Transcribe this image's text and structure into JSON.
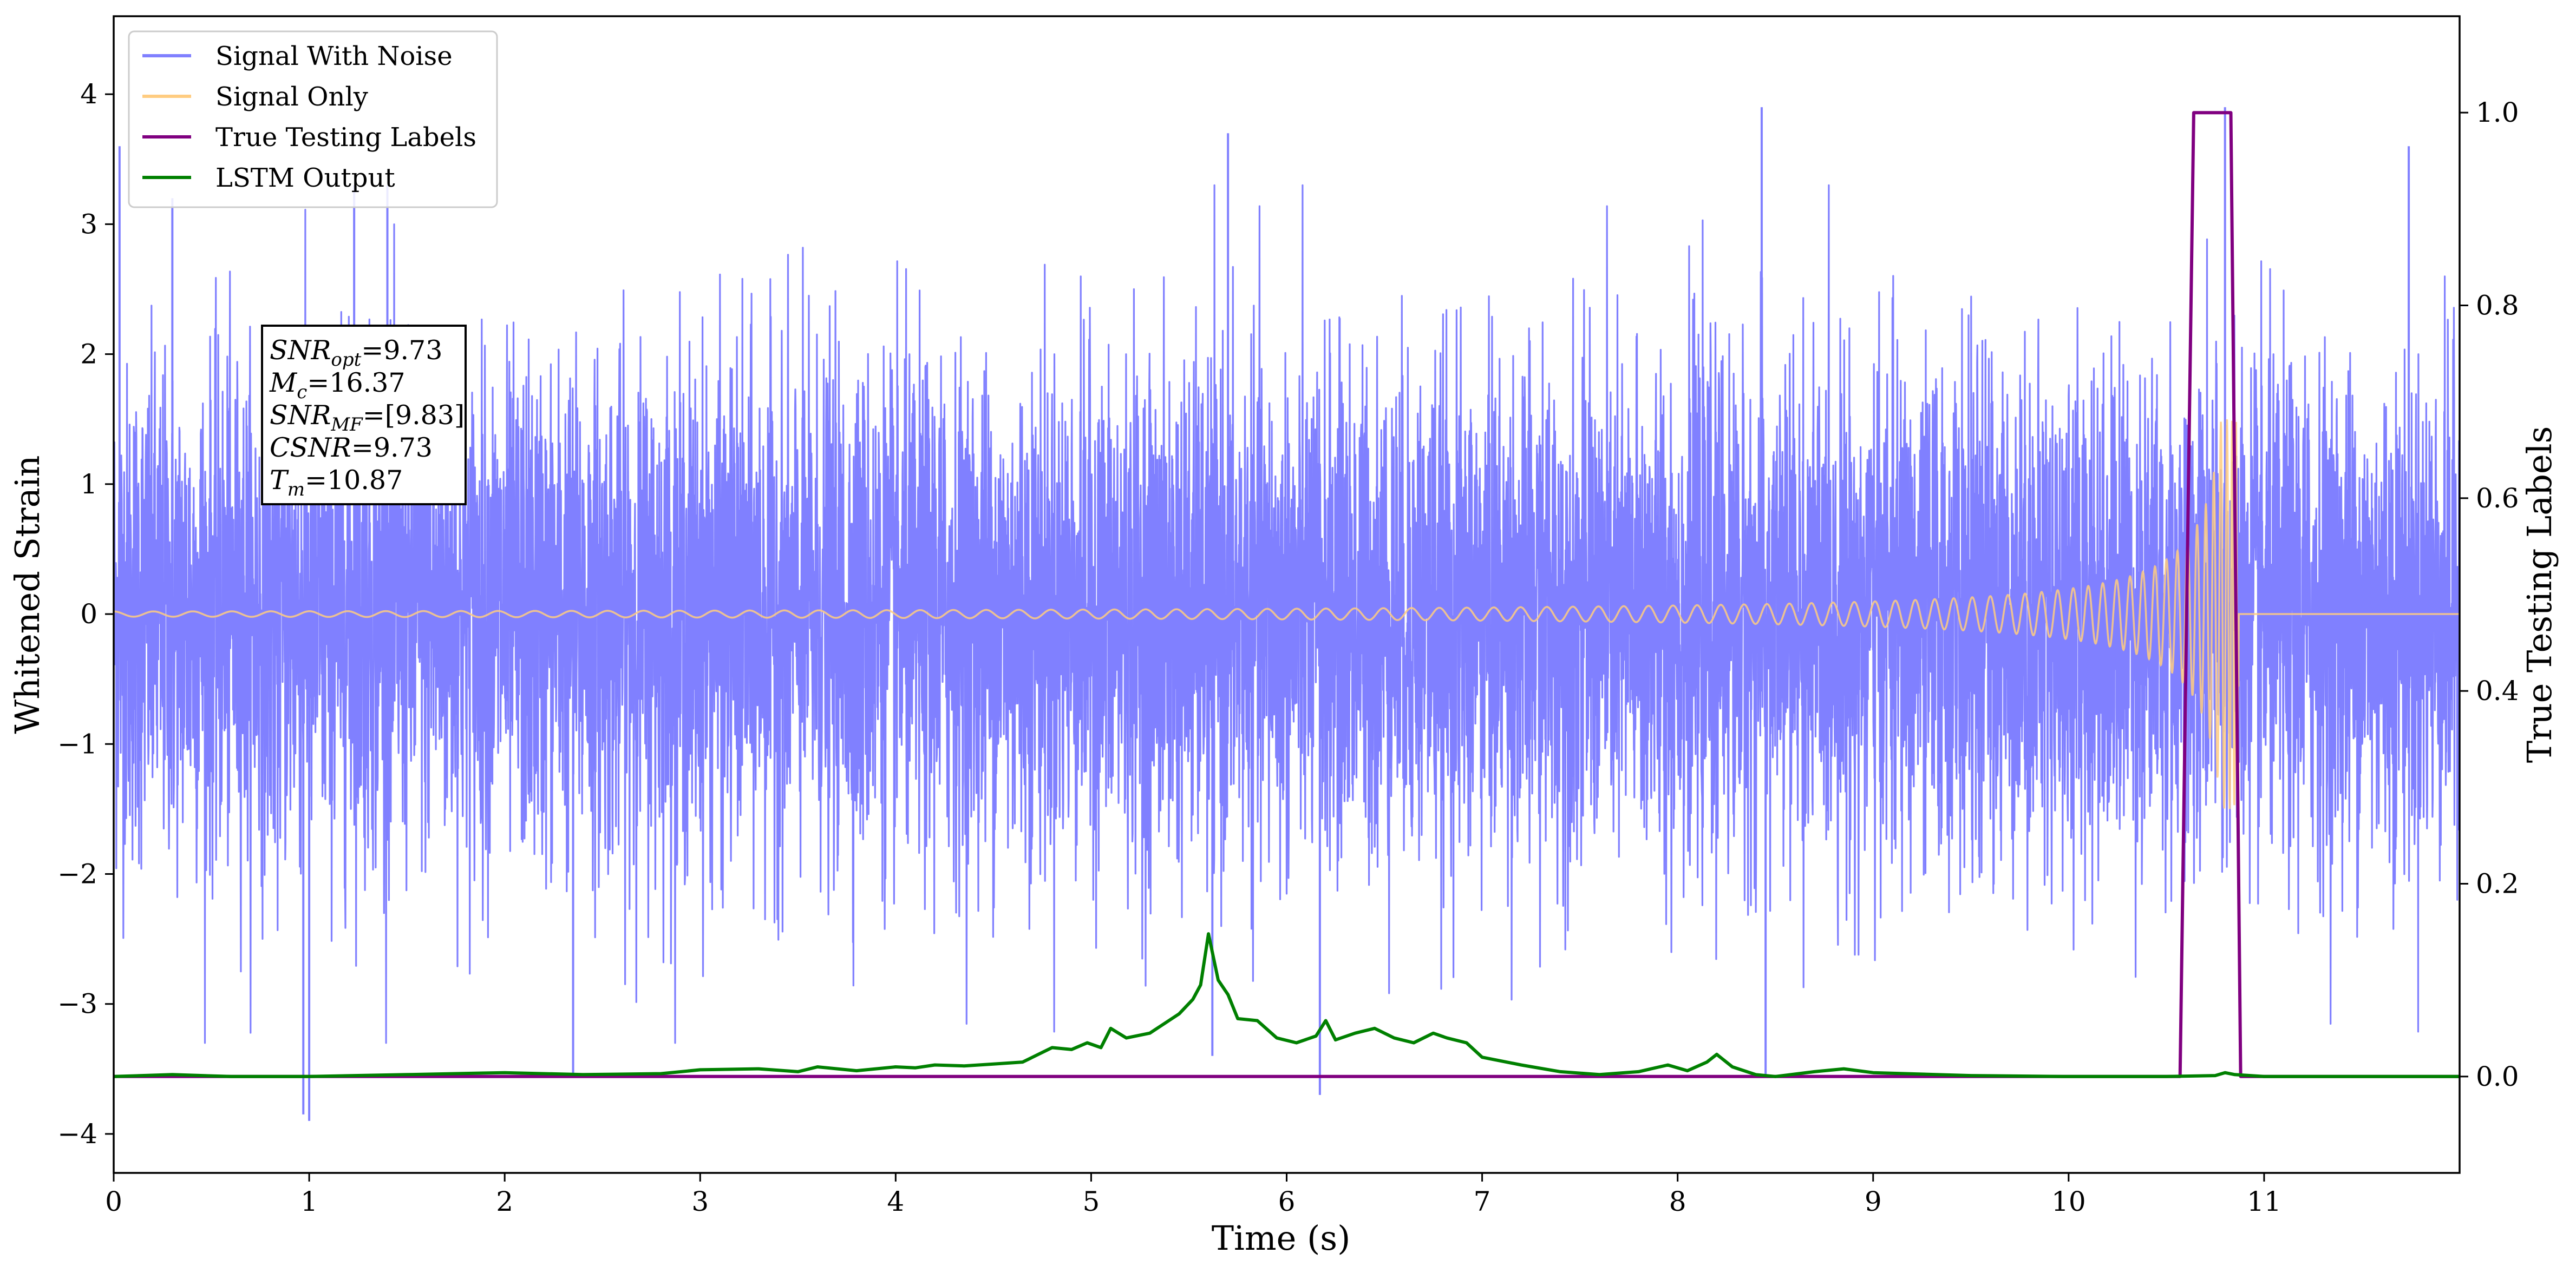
{
  "chart_data": {
    "type": "line",
    "xlabel": "Time (s)",
    "ylabel": "Whitened Strain",
    "y2label": "True Testing Labels",
    "xlim": [
      0,
      12
    ],
    "ylim": [
      -4.3,
      4.6
    ],
    "y2lim": [
      -0.1,
      1.1
    ],
    "xticks": [
      "0",
      "1",
      "2",
      "3",
      "4",
      "5",
      "6",
      "7",
      "8",
      "9",
      "10",
      "11"
    ],
    "yticks": [
      "4",
      "3",
      "2",
      "1",
      "0",
      "−1",
      "−2",
      "−3",
      "−4"
    ],
    "y2ticks": [
      "1.0",
      "0.8",
      "0.6",
      "0.4",
      "0.2",
      "0.0"
    ],
    "grid": false,
    "legend_position": "upper-left",
    "series": [
      {
        "name": "Signal With Noise",
        "axis": "left",
        "color": "#8080ff",
        "noise_sigma": 0.95,
        "notable_points": [
          [
            0.03,
            3.6
          ],
          [
            0.3,
            3.2
          ],
          [
            0.97,
            -3.85
          ],
          [
            1.0,
            -3.9
          ],
          [
            1.23,
            3.3
          ],
          [
            1.4,
            3.3
          ],
          [
            2.35,
            -3.55
          ],
          [
            5.62,
            -3.4
          ],
          [
            5.7,
            3.7
          ],
          [
            6.17,
            -3.7
          ],
          [
            8.43,
            3.9
          ],
          [
            8.45,
            -3.55
          ],
          [
            10.8,
            3.9
          ],
          [
            11.74,
            3.6
          ]
        ]
      },
      {
        "name": "Signal Only",
        "axis": "left",
        "color": "#ffcc80",
        "chirp_start": 0,
        "chirp_end": 10.87,
        "amplitude_start": 0.02,
        "amplitude_end": 1.5
      },
      {
        "name": "True Testing Labels",
        "axis": "right",
        "color": "#800080",
        "x": [
          0,
          10.57,
          10.64,
          10.83,
          10.88,
          12
        ],
        "y": [
          0,
          0,
          1.0,
          1.0,
          0,
          0
        ]
      },
      {
        "name": "LSTM Output",
        "axis": "right",
        "color": "#008000",
        "x": [
          0,
          0.3,
          0.6,
          1.0,
          1.5,
          2.0,
          2.4,
          2.8,
          3.0,
          3.3,
          3.5,
          3.6,
          3.8,
          4.0,
          4.1,
          4.2,
          4.35,
          4.5,
          4.65,
          4.75,
          4.8,
          4.9,
          4.98,
          5.05,
          5.1,
          5.18,
          5.3,
          5.45,
          5.52,
          5.56,
          5.6,
          5.65,
          5.7,
          5.75,
          5.85,
          5.95,
          6.05,
          6.15,
          6.2,
          6.25,
          6.35,
          6.45,
          6.55,
          6.65,
          6.75,
          6.82,
          6.92,
          7.0,
          7.2,
          7.4,
          7.6,
          7.8,
          7.95,
          8.05,
          8.15,
          8.2,
          8.28,
          8.4,
          8.5,
          8.7,
          8.85,
          9.0,
          9.5,
          10.0,
          10.5,
          10.75,
          10.8,
          10.85,
          11.0,
          12.0
        ],
        "y": [
          0.0,
          0.002,
          0.0,
          0.0,
          0.002,
          0.004,
          0.002,
          0.003,
          0.007,
          0.008,
          0.005,
          0.01,
          0.006,
          0.01,
          0.009,
          0.012,
          0.011,
          0.013,
          0.015,
          0.025,
          0.03,
          0.028,
          0.035,
          0.03,
          0.05,
          0.04,
          0.045,
          0.065,
          0.08,
          0.095,
          0.148,
          0.1,
          0.085,
          0.06,
          0.058,
          0.04,
          0.035,
          0.042,
          0.058,
          0.038,
          0.045,
          0.05,
          0.04,
          0.035,
          0.045,
          0.04,
          0.035,
          0.02,
          0.012,
          0.005,
          0.002,
          0.005,
          0.012,
          0.006,
          0.015,
          0.023,
          0.01,
          0.002,
          0.0,
          0.005,
          0.008,
          0.004,
          0.001,
          0.0,
          0.0,
          0.001,
          0.004,
          0.002,
          0.0,
          0.0
        ]
      }
    ],
    "annotation": [
      {
        "base": "SNR",
        "sub": "opt",
        "value": "=9.73",
        "italic": true
      },
      {
        "base": "M",
        "sub": "c",
        "value": "=16.37",
        "italic": true
      },
      {
        "base": "SNR",
        "sub": "MF",
        "value": "=[9.83]",
        "italic": true
      },
      {
        "base": "CSNR",
        "sub": "",
        "value": "=9.73",
        "italic": true
      },
      {
        "base": "T",
        "sub": "m",
        "value": "=10.87",
        "italic": true
      }
    ]
  }
}
